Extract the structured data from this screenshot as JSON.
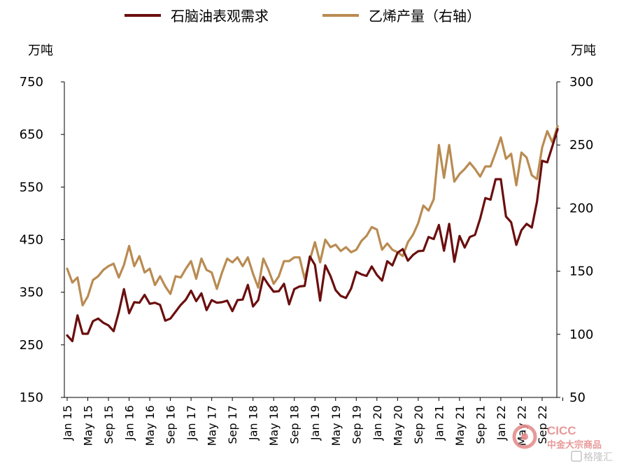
{
  "chart_data": {
    "type": "line",
    "legend_position": "top",
    "grid": false,
    "left_axis": {
      "unit": "万吨",
      "ylim": [
        150,
        750
      ],
      "ticks": [
        750,
        650,
        550,
        450,
        350,
        250,
        150
      ]
    },
    "right_axis": {
      "unit": "万吨",
      "ylim": [
        50,
        300
      ],
      "ticks": [
        300,
        250,
        200,
        150,
        100,
        50
      ]
    },
    "x_tick_labels": [
      "Jan 15",
      "May 15",
      "Sep 15",
      "Jan 16",
      "May 16",
      "Sep 16",
      "Jan 17",
      "May 17",
      "Sep 17",
      "Jan 18",
      "May 18",
      "Sep 18",
      "Jan 19",
      "May 19",
      "Sep 19",
      "Jan 20",
      "May 20",
      "Sep 20",
      "Jan 21",
      "May 21",
      "Sep 21",
      "Jan 22",
      "May 22",
      "Sep 22"
    ],
    "series": [
      {
        "name": "石脑油表观需求",
        "axis": "left",
        "color": "#6b0e0e",
        "start": "2015-01",
        "values": [
          268,
          257,
          306,
          271,
          271,
          295,
          300,
          292,
          287,
          276,
          312,
          356,
          310,
          331,
          330,
          345,
          328,
          330,
          326,
          296,
          300,
          313,
          326,
          336,
          353,
          333,
          348,
          316,
          335,
          330,
          331,
          334,
          314,
          335,
          336,
          364,
          323,
          335,
          379,
          364,
          351,
          352,
          366,
          327,
          356,
          361,
          362,
          418,
          402,
          334,
          401,
          381,
          354,
          343,
          339,
          357,
          389,
          384,
          381,
          399,
          383,
          372,
          409,
          401,
          425,
          432,
          410,
          421,
          428,
          429,
          455,
          451,
          478,
          429,
          480,
          408,
          457,
          435,
          455,
          459,
          490,
          529,
          526,
          565,
          565,
          494,
          483,
          440,
          468,
          480,
          473,
          522,
          600,
          597,
          628,
          660
        ]
      },
      {
        "name": "乙烯产量（右轴）",
        "axis": "right",
        "color": "#b98b52",
        "start": "2015-01",
        "values": [
          152,
          141,
          145,
          123,
          130,
          143,
          146,
          151,
          154,
          156,
          145,
          155,
          170,
          154,
          162,
          149,
          152,
          139,
          146,
          138,
          132,
          146,
          145,
          152,
          158,
          144,
          160,
          151,
          149,
          136,
          149,
          160,
          157,
          161,
          154,
          161,
          148,
          137,
          160,
          151,
          140,
          146,
          158,
          158,
          161,
          161,
          144,
          159,
          173,
          157,
          175,
          169,
          171,
          166,
          169,
          165,
          167,
          174,
          178,
          185,
          183,
          167,
          172,
          167,
          165,
          162,
          173,
          179,
          188,
          202,
          198,
          207,
          250,
          224,
          250,
          221,
          227,
          231,
          236,
          231,
          225,
          233,
          233,
          244,
          256,
          239,
          243,
          218,
          244,
          240,
          226,
          223,
          248,
          261,
          252,
          265
        ]
      }
    ]
  },
  "watermark": {
    "brand_latin": "CICC",
    "brand_cn": "中金大宗商品",
    "source_tag": "格隆汇"
  }
}
